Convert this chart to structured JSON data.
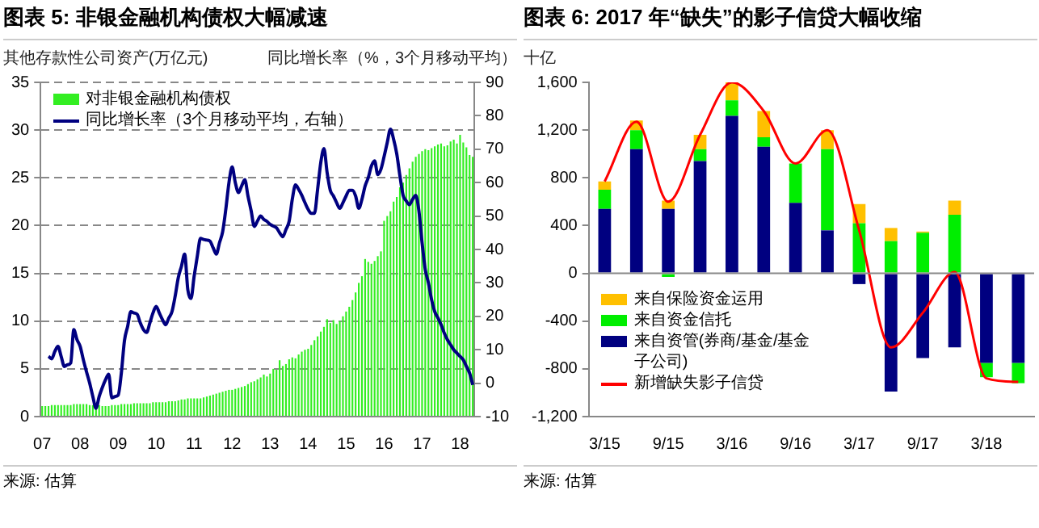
{
  "chart_data": [
    {
      "type": "bar",
      "title": "图表 5: 非银金融机构债权大幅减速",
      "ylabel": "其他存款性公司资产(万亿元)",
      "y2label": "同比增长率（%，3个月移动平均）",
      "categories": [
        "07",
        null,
        null,
        null,
        null,
        null,
        null,
        null,
        null,
        null,
        null,
        null,
        "08",
        null,
        null,
        null,
        null,
        null,
        null,
        null,
        null,
        null,
        null,
        null,
        "09",
        null,
        null,
        null,
        null,
        null,
        null,
        null,
        null,
        null,
        null,
        null,
        "10",
        null,
        null,
        null,
        null,
        null,
        null,
        null,
        null,
        null,
        null,
        null,
        "11",
        null,
        null,
        null,
        null,
        null,
        null,
        null,
        null,
        null,
        null,
        null,
        "12",
        null,
        null,
        null,
        null,
        null,
        null,
        null,
        null,
        null,
        null,
        null,
        "13",
        null,
        null,
        null,
        null,
        null,
        null,
        null,
        null,
        null,
        null,
        null,
        "14",
        null,
        null,
        null,
        null,
        null,
        null,
        null,
        null,
        null,
        null,
        null,
        "15",
        null,
        null,
        null,
        null,
        null,
        null,
        null,
        null,
        null,
        null,
        null,
        "16",
        null,
        null,
        null,
        null,
        null,
        null,
        null,
        null,
        null,
        null,
        null,
        "17",
        null,
        null,
        null,
        null,
        null,
        null,
        null,
        null,
        null,
        null,
        null,
        "18",
        null,
        null,
        null,
        null
      ],
      "series": [
        {
          "name": "对非银金融机构债权",
          "color": "#33ee22",
          "values": [
            1.1,
            1.1,
            1.1,
            1.2,
            1.2,
            1.2,
            1.2,
            1.2,
            1.2,
            1.2,
            1.3,
            1.3,
            1.3,
            1.3,
            1.3,
            1.2,
            1.2,
            1.2,
            1.2,
            1.1,
            1.1,
            1.1,
            1.2,
            1.2,
            1.2,
            1.3,
            1.3,
            1.3,
            1.3,
            1.4,
            1.4,
            1.4,
            1.4,
            1.4,
            1.4,
            1.5,
            1.5,
            1.5,
            1.5,
            1.5,
            1.6,
            1.6,
            1.6,
            1.7,
            1.8,
            1.8,
            1.9,
            1.9,
            1.9,
            1.9,
            1.9,
            2.0,
            2.1,
            2.2,
            2.3,
            2.4,
            2.5,
            2.6,
            2.7,
            2.8,
            2.8,
            2.9,
            3.0,
            3.1,
            3.2,
            3.4,
            3.6,
            3.7,
            3.9,
            4.1,
            4.4,
            4.2,
            4.5,
            5.0,
            4.9,
            5.9,
            5.3,
            5.5,
            6.0,
            6.2,
            6.1,
            6.5,
            6.8,
            7.0,
            7.1,
            7.5,
            8.0,
            8.4,
            8.9,
            9.4,
            10.2,
            9.8,
            10.1,
            9.7,
            10.0,
            10.5,
            11.0,
            11.5,
            12.2,
            13.0,
            14.0,
            14.7,
            16.5,
            16.2,
            16.0,
            16.3,
            16.8,
            17.3,
            20.5,
            21.0,
            21.5,
            22.5,
            23.0,
            24.0,
            24.5,
            25.3,
            26.0,
            26.7,
            27.2,
            27.5,
            27.8,
            28.0,
            27.9,
            28.1,
            28.3,
            28.5,
            28.6,
            28.3,
            28.4,
            28.8,
            29.0,
            28.6,
            29.5,
            28.7,
            28.2,
            27.4,
            27.2
          ]
        },
        {
          "name": "同比增长率（3个月移动平均，右轴）",
          "type": "line",
          "axis": "y2",
          "color": "#000080",
          "values": [
            null,
            null,
            8,
            7.3,
            9.5,
            11,
            8,
            5,
            5.5,
            6,
            16,
            13,
            11,
            7,
            3.4,
            0,
            -4,
            -7.5,
            -4,
            -1.3,
            1,
            2.7,
            -4.4,
            -4,
            -3.6,
            3,
            12.8,
            17,
            21.4,
            21,
            20.6,
            18,
            16,
            15.2,
            18,
            21,
            23,
            21,
            19,
            17.5,
            19.5,
            21.4,
            26,
            31.6,
            35,
            38.6,
            28,
            25.3,
            32,
            38,
            43.3,
            43,
            42.8,
            42.5,
            40.5,
            38.6,
            42,
            45.3,
            52,
            60,
            64.7,
            60,
            57,
            59,
            60.9,
            56,
            51.6,
            46.9,
            48.5,
            50,
            49,
            48.4,
            47.5,
            47,
            46.5,
            45,
            43.8,
            46,
            48.4,
            55,
            59.3,
            58,
            56.2,
            54,
            52,
            50.8,
            50.8,
            58,
            66,
            70.2,
            63,
            57.7,
            56,
            54,
            52.3,
            54,
            56,
            57.7,
            57.7,
            56,
            52.3,
            55,
            59,
            61.5,
            65,
            66.5,
            62.4,
            64,
            67.8,
            72,
            76,
            73,
            68.6,
            62,
            56.2,
            54.5,
            53.4,
            55,
            56.2,
            51.5,
            42,
            34,
            30,
            25,
            21.4,
            19.5,
            17.5,
            15,
            13,
            11.5,
            10,
            9,
            8,
            7,
            5,
            3,
            -0.5
          ]
        }
      ],
      "ylim": [
        0,
        35
      ],
      "yticks": [
        0,
        5,
        10,
        15,
        20,
        25,
        30,
        35
      ],
      "y2lim": [
        -10,
        90
      ],
      "y2ticks": [
        -10,
        0,
        10,
        20,
        30,
        40,
        50,
        60,
        70,
        80,
        90
      ],
      "grid": "y",
      "legend": "top left",
      "annotations": [
        "来源: 估算"
      ]
    },
    {
      "type": "bar",
      "title": "图表 6: 2017 年“缺失”的影子信贷大幅收缩",
      "ylabel": "十亿",
      "categories": [
        "3/15",
        null,
        "9/15",
        null,
        "3/16",
        null,
        "9/16",
        null,
        "3/17",
        null,
        "9/17",
        null,
        "3/18",
        null
      ],
      "stacked": true,
      "series": [
        {
          "name": "来自资管(券商/基金/基金子公司)",
          "color": "#000080",
          "values": [
            540,
            1040,
            540,
            940,
            1320,
            1060,
            590,
            360,
            -90,
            -990,
            -710,
            -620,
            -750,
            -750
          ]
        },
        {
          "name": "来自资金信托",
          "color": "#00ee00",
          "values": [
            160,
            160,
            -30,
            100,
            130,
            80,
            330,
            680,
            420,
            270,
            340,
            490,
            -120,
            -170
          ]
        },
        {
          "name": "来自保险资金运用",
          "color": "#ffc000",
          "values": [
            70,
            80,
            70,
            120,
            150,
            220,
            0,
            160,
            160,
            110,
            10,
            120,
            0,
            0
          ]
        },
        {
          "name": "新增缺失影子信贷",
          "type": "line",
          "color": "#ff0000",
          "values": [
            770,
            1270,
            600,
            1160,
            1600,
            1360,
            920,
            1200,
            360,
            -620,
            -330,
            10,
            -880,
            -910
          ]
        }
      ],
      "ylim": [
        -1200,
        1600
      ],
      "yticks": [
        {
          "value": -1200,
          "label": "-1,200"
        },
        -800,
        -400,
        0,
        400,
        800,
        {
          "value": 1200,
          "label": "1,200"
        },
        {
          "value": 1600,
          "label": "1,600"
        }
      ],
      "legend": "bottom left",
      "annotations": [
        "来源: 估算"
      ]
    }
  ]
}
